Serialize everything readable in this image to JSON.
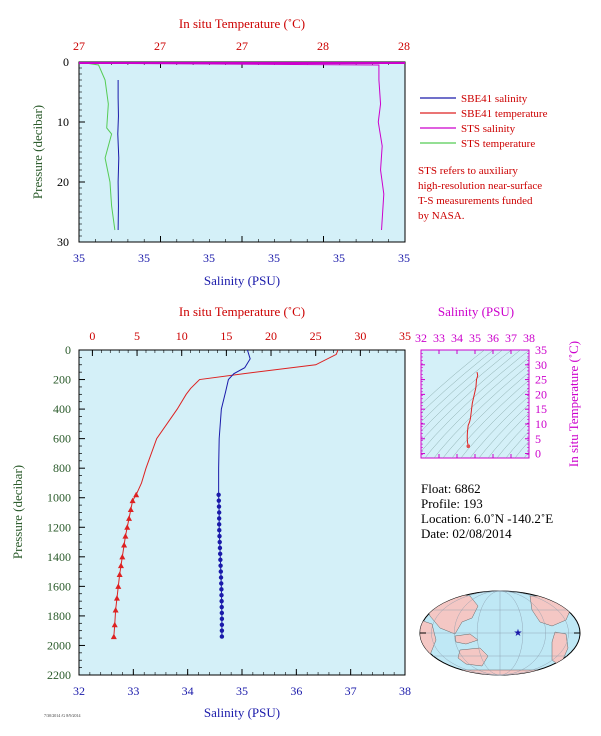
{
  "top_panel": {
    "top_axis_label": "In situ Temperature (˚C)",
    "top_ticks": [
      "27",
      "27",
      "27",
      "28",
      "28"
    ],
    "bottom_axis_label": "Salinity (PSU)",
    "bottom_ticks": [
      "35",
      "35",
      "35",
      "35",
      "35",
      "35"
    ],
    "left_axis_label": "Pressure (decibar)",
    "left_ticks": [
      "0",
      "10",
      "20",
      "30"
    ],
    "legend": [
      {
        "label": "SBE41 salinity",
        "color": "#1a1aaa"
      },
      {
        "label": "SBE41 temperature",
        "color": "#dd2222"
      },
      {
        "label": "STS salinity",
        "color": "#cc00cc"
      },
      {
        "label": "STS temperature",
        "color": "#55cc55"
      }
    ],
    "note": [
      "STS refers to auxiliary",
      "high-resolution near-surface",
      "T-S measurements funded",
      "by NASA."
    ]
  },
  "main_panel": {
    "top_axis_label": "In situ Temperature (˚C)",
    "top_ticks": [
      "0",
      "5",
      "10",
      "15",
      "20",
      "25",
      "30",
      "35"
    ],
    "bottom_axis_label": "Salinity (PSU)",
    "bottom_ticks": [
      "32",
      "33",
      "34",
      "35",
      "36",
      "37",
      "38"
    ],
    "left_axis_label": "Pressure (decibar)",
    "left_ticks": [
      "0",
      "200",
      "400",
      "600",
      "800",
      "1000",
      "1200",
      "1400",
      "1600",
      "1800",
      "2000",
      "2200"
    ]
  },
  "ts_panel": {
    "top_axis_label": "Salinity (PSU)",
    "top_ticks": [
      "32",
      "33",
      "34",
      "35",
      "36",
      "37",
      "38"
    ],
    "right_axis_label": "In situ Temperature (˚C)",
    "right_ticks": [
      "0",
      "5",
      "10",
      "15",
      "20",
      "25",
      "30",
      "35"
    ]
  },
  "float_info": {
    "float": "Float:  6862",
    "profile": "Profile:  193",
    "location": "Location:  6.0˚N  -140.2˚E",
    "date": "Date:  02/08/2014"
  },
  "footer_text": "7/30/2014 /G 8/9/2014",
  "colors": {
    "plot_bg": "#d4f0f8",
    "salinity": "#1a1aaa",
    "temperature": "#dd2222",
    "sts_salinity": "#cc00cc",
    "sts_temperature": "#55cc55",
    "ocean": "#bfe8f5",
    "land": "#f4c7c4"
  },
  "chart_data": [
    {
      "type": "line",
      "id": "main_profile",
      "ylabel": "Pressure (decibar)",
      "ylim": [
        2200,
        0
      ],
      "series": [
        {
          "name": "Temperature",
          "xlim": [
            -1.5,
            35
          ],
          "x": [
            27.5,
            27.3,
            25.0,
            17.0,
            12.0,
            11.0,
            10.5,
            9.5,
            7.2,
            6.0,
            5.5,
            4.9,
            4.5,
            4.3,
            4.1,
            3.9,
            3.7,
            3.55,
            3.35,
            3.2,
            3.05,
            2.9,
            2.75,
            2.6,
            2.5,
            2.4
          ],
          "y": [
            0,
            30,
            100,
            160,
            200,
            260,
            300,
            400,
            600,
            800,
            900,
            980,
            1020,
            1080,
            1140,
            1200,
            1260,
            1320,
            1400,
            1460,
            1520,
            1600,
            1680,
            1760,
            1860,
            1940
          ]
        },
        {
          "name": "Salinity",
          "xlim": [
            32,
            38
          ],
          "x": [
            35.1,
            35.15,
            35.05,
            34.85,
            34.75,
            34.7,
            34.62,
            34.58,
            34.57,
            34.57,
            34.58,
            34.58,
            34.59,
            34.6,
            34.61,
            34.62,
            34.63,
            34.63
          ],
          "y": [
            0,
            60,
            120,
            160,
            200,
            280,
            400,
            600,
            800,
            980,
            1100,
            1200,
            1300,
            1400,
            1500,
            1600,
            1800,
            1940
          ]
        }
      ]
    },
    {
      "type": "line",
      "id": "near_surface",
      "ylabel": "Pressure (decibar)",
      "ylim": [
        30,
        0
      ],
      "series": [
        {
          "name": "SBE41 salinity",
          "x": [
            0.12,
            0.12,
            0.121,
            0.119,
            0.122,
            0.12,
            0.121,
            0.12
          ],
          "y": [
            3,
            6,
            9,
            12,
            16,
            20,
            24,
            28
          ]
        },
        {
          "name": "SBE41 temperature",
          "x": [
            0.01,
            0.99
          ],
          "y": [
            0.1,
            0.1
          ]
        },
        {
          "name": "STS salinity",
          "x": [
            0.0,
            0.92,
            0.92,
            0.925,
            0.918,
            0.93,
            0.925,
            0.935,
            0.928
          ],
          "y": [
            0.2,
            0.5,
            3,
            7,
            10,
            14,
            18,
            22,
            28
          ]
        },
        {
          "name": "STS temperature",
          "x": [
            0.0,
            0.06,
            0.08,
            0.09,
            0.085,
            0.1,
            0.08,
            0.095,
            0.1,
            0.11
          ],
          "y": [
            0,
            0.5,
            3,
            7,
            11,
            12,
            16,
            20,
            24,
            28
          ]
        }
      ]
    }
  ]
}
